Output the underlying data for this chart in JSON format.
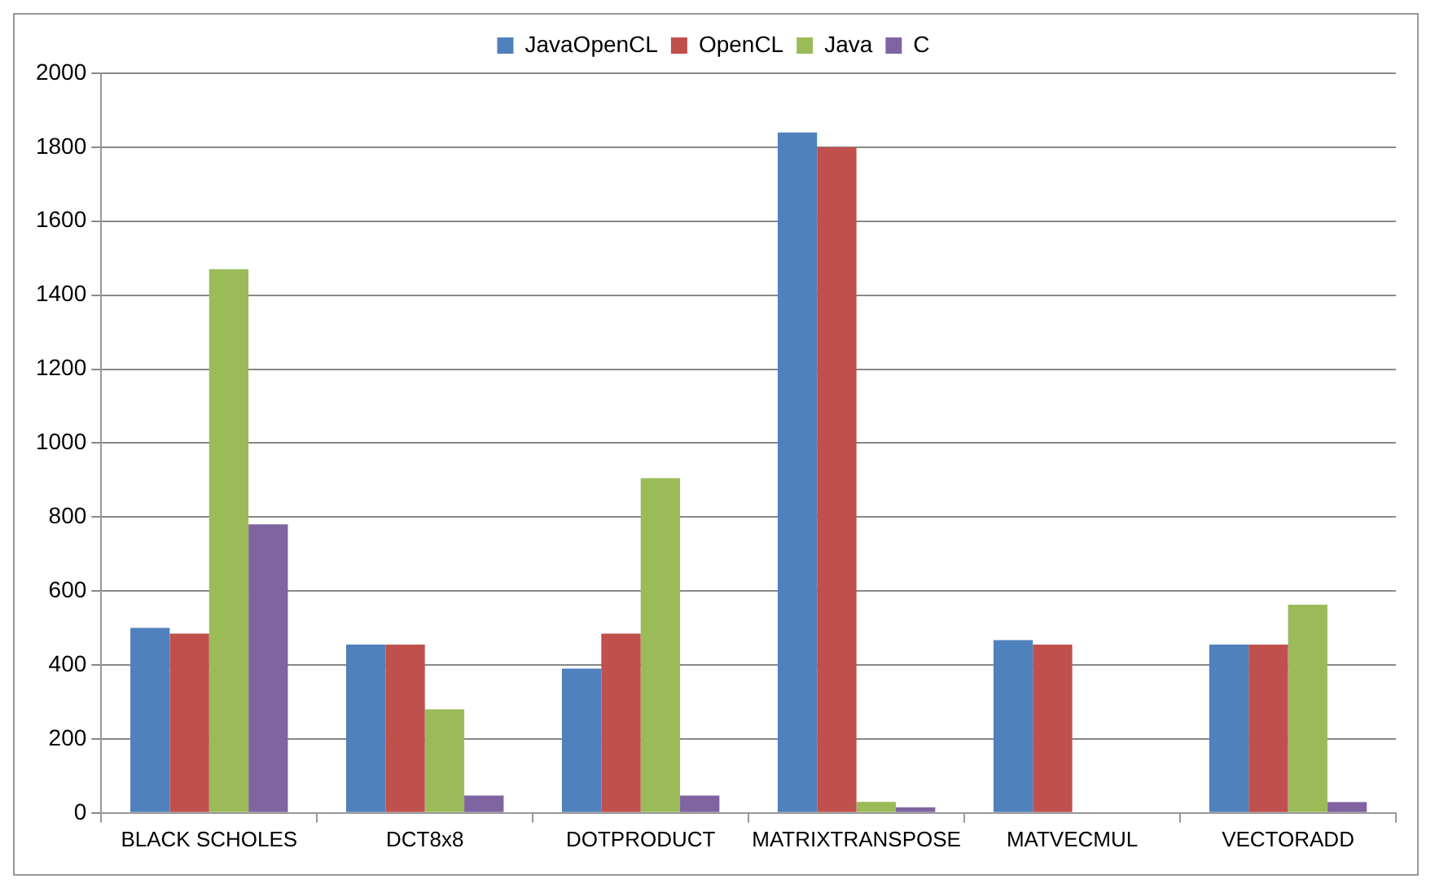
{
  "chart_data": {
    "type": "bar",
    "categories": [
      "BLACK SCHOLES",
      "DCT8x8",
      "DOTPRODUCT",
      "MATRIXTRANSPOSE",
      "MATVECMUL",
      "VECTORADD"
    ],
    "series": [
      {
        "name": "JavaOpenCL",
        "color": "#4f81bd",
        "values": [
          500,
          455,
          390,
          1840,
          467,
          455
        ]
      },
      {
        "name": "OpenCL",
        "color": "#c0504d",
        "values": [
          485,
          455,
          485,
          1800,
          455,
          455
        ]
      },
      {
        "name": "Java",
        "color": "#9bbb59",
        "values": [
          1470,
          280,
          905,
          30,
          null,
          563
        ]
      },
      {
        "name": "C",
        "color": "#8064a2",
        "values": [
          780,
          47,
          47,
          15,
          null,
          29
        ]
      }
    ],
    "ylim": [
      0,
      2000
    ],
    "yticks": [
      0,
      200,
      400,
      600,
      800,
      1000,
      1200,
      1400,
      1600,
      1800,
      2000
    ],
    "grid": "y",
    "legend": "top"
  }
}
